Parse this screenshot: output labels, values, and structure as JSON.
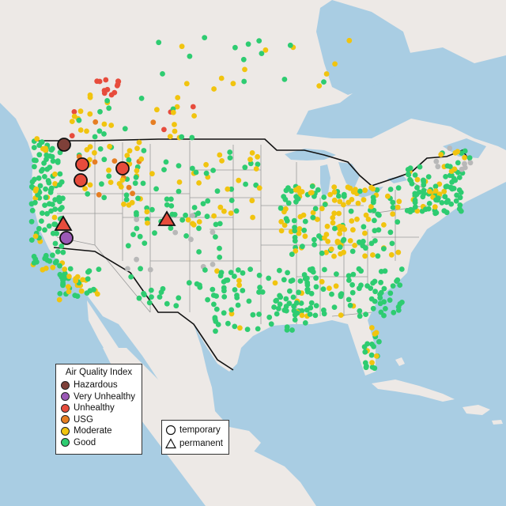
{
  "legend": {
    "title": "Air Quality Index",
    "categories": [
      {
        "label": "Hazardous",
        "color": "#7e4039"
      },
      {
        "label": "Very Unhealthy",
        "color": "#9b59b6"
      },
      {
        "label": "Unhealthy",
        "color": "#e74c3c"
      },
      {
        "label": "USG",
        "color": "#e67e22"
      },
      {
        "label": "Moderate",
        "color": "#f1c40f"
      },
      {
        "label": "Good",
        "color": "#2ecc71"
      }
    ],
    "no_data_color": "#b8b8b8"
  },
  "shape_legend": {
    "temporary": "temporary",
    "permanent": "permanent"
  },
  "map": {
    "land_color": "#ede9e6",
    "water_color": "#a9cde3",
    "state_border_color": "#9a9a9a",
    "country_border_color": "#111111"
  }
}
